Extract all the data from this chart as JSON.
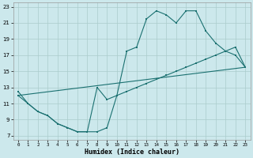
{
  "xlabel": "Humidex (Indice chaleur)",
  "bg_color": "#cce8ec",
  "grid_color": "#aacccc",
  "line_color": "#1a7070",
  "xlim": [
    -0.5,
    23.5
  ],
  "ylim": [
    6.5,
    23.5
  ],
  "yticks": [
    7,
    9,
    11,
    13,
    15,
    17,
    19,
    21,
    23
  ],
  "xticks": [
    0,
    1,
    2,
    3,
    4,
    5,
    6,
    7,
    8,
    9,
    10,
    11,
    12,
    13,
    14,
    15,
    16,
    17,
    18,
    19,
    20,
    21,
    22,
    23
  ],
  "line1_x": [
    0,
    1,
    2,
    3,
    4,
    5,
    6,
    7,
    8,
    9,
    10,
    11,
    12,
    13,
    14,
    15,
    16,
    17,
    18,
    19,
    20,
    21,
    22,
    23
  ],
  "line1_y": [
    12.5,
    11,
    10,
    9.5,
    8.5,
    8.0,
    7.5,
    7.5,
    7.5,
    8.0,
    12.0,
    17.5,
    18.0,
    21.5,
    22.5,
    22.0,
    21.0,
    22.5,
    22.5,
    20.0,
    18.5,
    17.5,
    17.0,
    15.5
  ],
  "line2_x": [
    0,
    1,
    2,
    3,
    4,
    5,
    6,
    7,
    8,
    9,
    10,
    11,
    12,
    13,
    14,
    15,
    16,
    17,
    18,
    19,
    20,
    21,
    22,
    23
  ],
  "line2_y": [
    12.0,
    11.0,
    10.0,
    9.5,
    8.5,
    8.0,
    7.5,
    7.5,
    13.0,
    11.5,
    12.0,
    12.5,
    13.0,
    13.5,
    14.0,
    14.5,
    15.0,
    15.5,
    16.0,
    16.5,
    17.0,
    17.5,
    18.0,
    15.5
  ],
  "line3_x": [
    0,
    23
  ],
  "line3_y": [
    12.0,
    15.5
  ]
}
